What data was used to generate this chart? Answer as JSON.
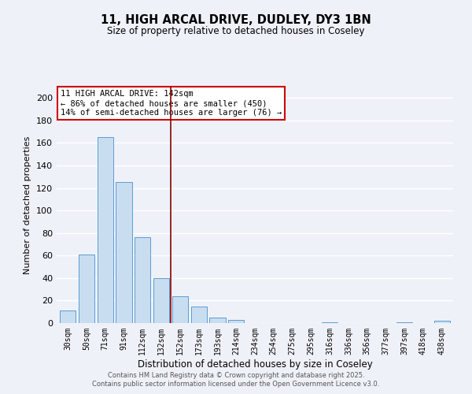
{
  "title_line1": "11, HIGH ARCAL DRIVE, DUDLEY, DY3 1BN",
  "title_line2": "Size of property relative to detached houses in Coseley",
  "xlabel": "Distribution of detached houses by size in Coseley",
  "ylabel": "Number of detached properties",
  "bar_labels": [
    "30sqm",
    "50sqm",
    "71sqm",
    "91sqm",
    "112sqm",
    "132sqm",
    "152sqm",
    "173sqm",
    "193sqm",
    "214sqm",
    "234sqm",
    "254sqm",
    "275sqm",
    "295sqm",
    "316sqm",
    "336sqm",
    "356sqm",
    "377sqm",
    "397sqm",
    "418sqm",
    "438sqm"
  ],
  "bar_values": [
    11,
    61,
    165,
    125,
    76,
    40,
    24,
    15,
    5,
    3,
    0,
    0,
    0,
    0,
    1,
    0,
    0,
    0,
    1,
    0,
    2
  ],
  "bar_color": "#c9ddf0",
  "bar_edge_color": "#5b9bd5",
  "vline_x": 5.5,
  "vline_color": "#8b0000",
  "annotation_title": "11 HIGH ARCAL DRIVE: 142sqm",
  "annotation_line1": "← 86% of detached houses are smaller (450)",
  "annotation_line2": "14% of semi-detached houses are larger (76) →",
  "annotation_box_color": "#ffffff",
  "annotation_box_edge_color": "#cc0000",
  "ylim": [
    0,
    210
  ],
  "yticks": [
    0,
    20,
    40,
    60,
    80,
    100,
    120,
    140,
    160,
    180,
    200
  ],
  "footer_line1": "Contains HM Land Registry data © Crown copyright and database right 2025.",
  "footer_line2": "Contains public sector information licensed under the Open Government Licence v3.0.",
  "bg_color": "#eef2f8",
  "grid_color": "#ffffff"
}
